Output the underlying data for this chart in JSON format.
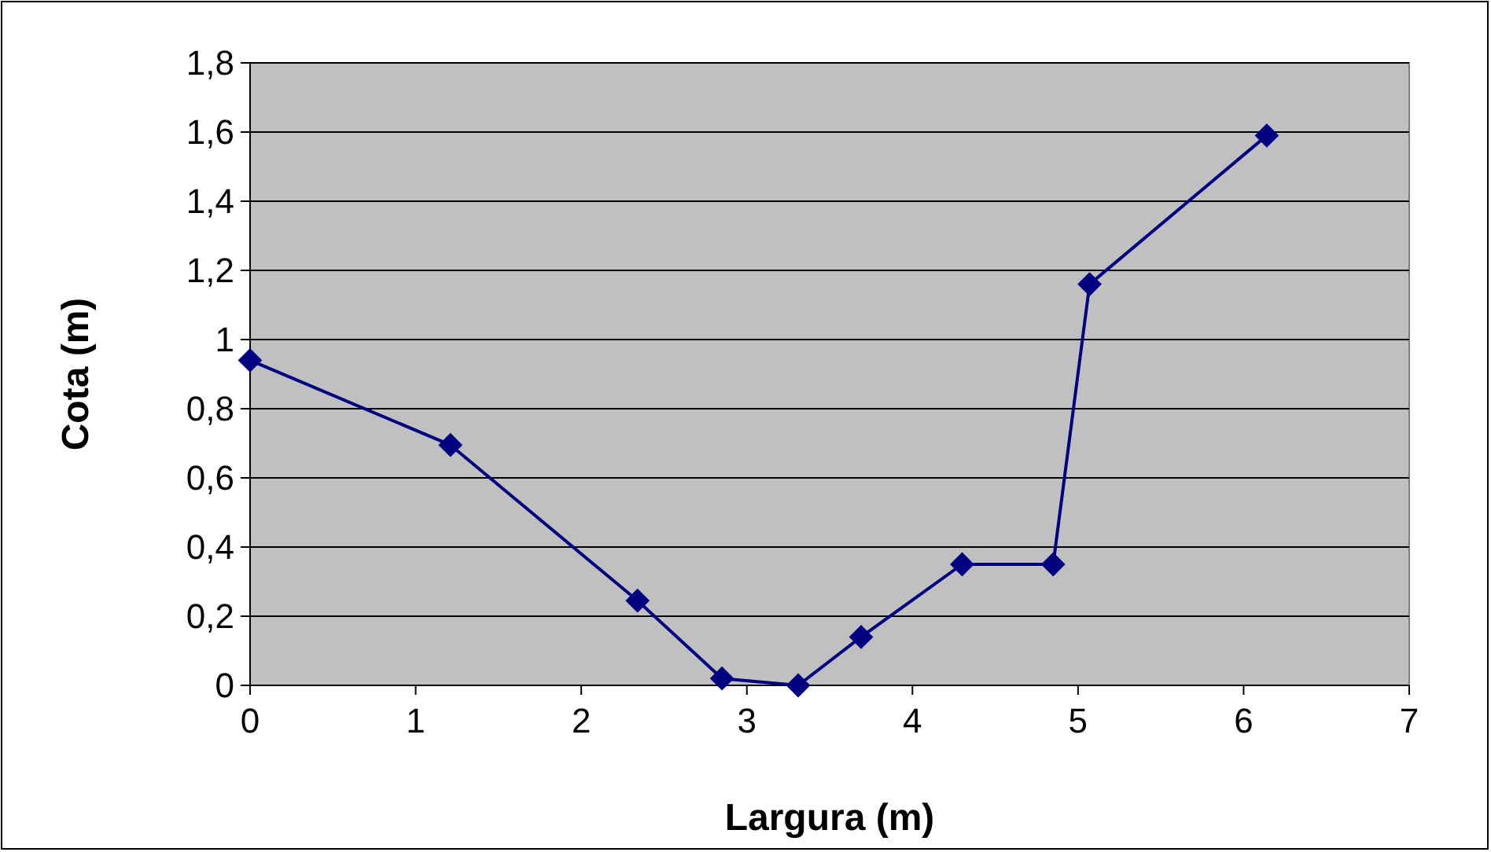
{
  "chart_data": {
    "type": "line",
    "xlabel": "Largura (m)",
    "ylabel": "Cota (m)",
    "x": [
      0,
      1.21,
      2.34,
      2.85,
      3.31,
      3.69,
      4.3,
      4.85,
      5.07,
      6.14
    ],
    "series": [
      {
        "color": "#000080",
        "values": [
          0.94,
          0.695,
          0.245,
          0.02,
          0,
          0.14,
          0.35,
          0.35,
          1.16,
          1.59
        ]
      }
    ],
    "xlim": [
      0,
      7
    ],
    "xticks": [
      0,
      1,
      2,
      3,
      4,
      5,
      6,
      7
    ],
    "ylim": [
      0,
      1.8
    ],
    "yticks": [
      0,
      {
        "value": 0.2,
        "label": "0,2"
      },
      {
        "value": 0.4,
        "label": "0,4"
      },
      {
        "value": 0.6,
        "label": "0,6"
      },
      {
        "value": 0.8,
        "label": "0,8"
      },
      1,
      {
        "value": 1.2,
        "label": "1,2"
      },
      {
        "value": 1.4,
        "label": "1,4"
      },
      {
        "value": 1.6,
        "label": "1,6"
      },
      {
        "value": 1.8,
        "label": "1,8"
      }
    ],
    "grid": "y",
    "marker": "diamond",
    "line_style": "solid"
  }
}
